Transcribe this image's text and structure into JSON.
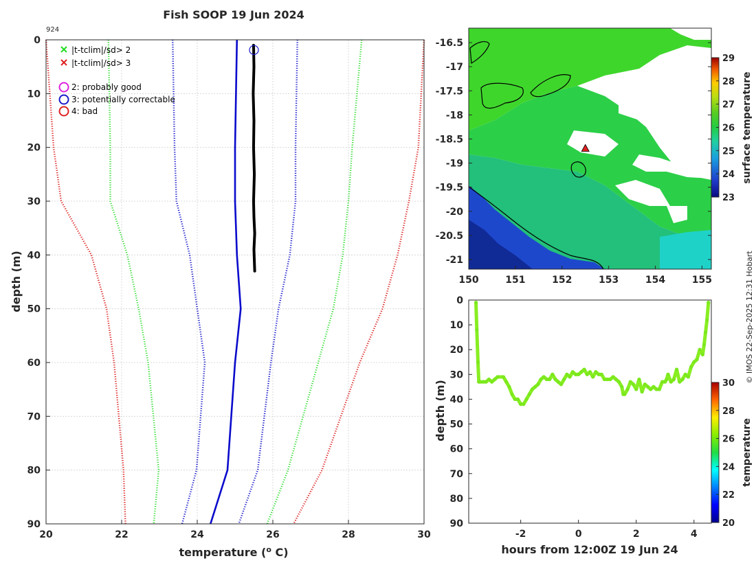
{
  "colors": {
    "limit_sd2": "#33dd33",
    "limit_sd3": "#dd2222",
    "limit_blue": "#1a1acc",
    "clim_mean": "#0a0acc",
    "profile": "#000000",
    "track": "#88ee22",
    "qc_good": "#cc22cc",
    "qc_correctable": "#1a1acc",
    "qc_bad": "#dd2222"
  },
  "chart_data": [
    {
      "id": "profile",
      "type": "line",
      "title": "Fish SOOP 19 Jun 2024",
      "id_label": "924",
      "xlabel": "temperature (",
      "xlabel_sup": "o",
      "xlabel_tail": " C)",
      "ylabel": "depth (m)",
      "xlim": [
        20,
        30
      ],
      "ylim": [
        0,
        90
      ],
      "xticks": [
        20,
        22,
        24,
        26,
        28,
        30
      ],
      "yticks": [
        0,
        10,
        20,
        30,
        40,
        50,
        60,
        70,
        80,
        90
      ],
      "grid": true,
      "legend": {
        "position": "top-left",
        "entries": [
          {
            "marker": "x",
            "color": "#22dd22",
            "label": "|t-tclim|/sd> 2"
          },
          {
            "marker": "x",
            "color": "#dd2222",
            "label": "|t-tclim|/sd> 3"
          },
          {
            "marker": "o",
            "color": "#dd22dd",
            "label": "2: probably good"
          },
          {
            "marker": "o",
            "color": "#1a1acc",
            "label": "3: potentially correctable"
          },
          {
            "marker": "o",
            "color": "#dd2222",
            "label": "4: bad"
          }
        ]
      },
      "series": [
        {
          "name": "clim -3sd",
          "style": "dotted",
          "color": "#dd2222",
          "x": [
            20.0,
            20.2,
            20.4,
            21.2,
            21.6,
            21.8,
            22.05,
            22.1
          ],
          "y": [
            0,
            20,
            30,
            40,
            50,
            60,
            80,
            90
          ]
        },
        {
          "name": "clim -2sd",
          "style": "dotted",
          "color": "#33dd33",
          "x": [
            21.65,
            21.7,
            21.7,
            22.15,
            22.45,
            22.7,
            22.98,
            22.85
          ],
          "y": [
            0,
            20,
            30,
            40,
            50,
            60,
            80,
            90
          ]
        },
        {
          "name": "clim -1sd",
          "style": "dotted",
          "color": "#1a1acc",
          "x": [
            23.35,
            23.4,
            23.45,
            23.8,
            24.0,
            24.2,
            23.98,
            23.6
          ],
          "y": [
            0,
            20,
            30,
            40,
            50,
            60,
            80,
            90
          ]
        },
        {
          "name": "clim mean",
          "style": "solid",
          "color": "#0a0acc",
          "x": [
            25.05,
            25.0,
            25.0,
            25.05,
            25.15,
            25.0,
            24.8,
            24.35
          ],
          "y": [
            0,
            20,
            30,
            40,
            50,
            60,
            80,
            90
          ]
        },
        {
          "name": "clim +1sd",
          "style": "dotted",
          "color": "#1a1acc",
          "x": [
            26.65,
            26.6,
            26.6,
            26.45,
            26.15,
            25.95,
            25.6,
            25.1
          ],
          "y": [
            0,
            20,
            30,
            40,
            50,
            60,
            80,
            90
          ]
        },
        {
          "name": "clim +2sd",
          "style": "dotted",
          "color": "#33dd33",
          "x": [
            28.35,
            28.1,
            28.0,
            27.85,
            27.6,
            27.2,
            26.4,
            25.85
          ],
          "y": [
            0,
            20,
            30,
            40,
            50,
            60,
            80,
            90
          ]
        },
        {
          "name": "clim +3sd",
          "style": "dotted",
          "color": "#dd2222",
          "x": [
            30.0,
            29.85,
            29.6,
            29.3,
            28.9,
            28.3,
            27.3,
            26.55
          ],
          "y": [
            0,
            20,
            30,
            40,
            50,
            60,
            80,
            90
          ]
        },
        {
          "name": "profile",
          "style": "thick",
          "color": "#000000",
          "x": [
            25.49,
            25.5,
            25.48,
            25.5,
            25.49,
            25.51,
            25.49,
            25.5,
            25.52,
            25.5,
            25.51,
            25.52
          ],
          "y": [
            1,
            5,
            10,
            15,
            20,
            25,
            30,
            33,
            36,
            39,
            41,
            43
          ]
        }
      ],
      "markers": [
        {
          "x": 25.5,
          "y": 1,
          "shape": "circle",
          "color": "#1a1acc"
        }
      ]
    },
    {
      "id": "map",
      "type": "heatmap",
      "xlim": [
        150,
        155.2
      ],
      "ylim": [
        -21.2,
        -16.2
      ],
      "xticks": [
        150,
        151,
        152,
        153,
        154,
        155
      ],
      "yticks": [
        -16.5,
        -17,
        -17.5,
        -18,
        -18.5,
        -19,
        -19.5,
        -20,
        -20.5,
        -21
      ],
      "colorbar": {
        "label": "surface temperature",
        "range": [
          23,
          29
        ],
        "ticks": [
          23,
          24,
          25,
          26,
          27,
          28,
          29
        ]
      },
      "position_marker": {
        "lon": 152.5,
        "lat": -18.7,
        "shape": "triangle"
      }
    },
    {
      "id": "track",
      "type": "scatter",
      "xlabel": "hours from 12:00Z 19 Jun 24",
      "ylabel": "depth (m)",
      "xlim": [
        -3.8,
        4.6
      ],
      "ylim": [
        0,
        90
      ],
      "xticks": [
        -2,
        0,
        2,
        4
      ],
      "yticks": [
        0,
        10,
        20,
        30,
        40,
        50,
        60,
        70,
        80,
        90
      ],
      "colorbar": {
        "label": "temperature",
        "range": [
          20,
          30
        ],
        "ticks": [
          20,
          22,
          24,
          26,
          28,
          30
        ]
      },
      "series": [
        {
          "name": "towed depth",
          "x": [
            -3.55,
            -3.52,
            -3.48,
            -3.45,
            -3.4,
            -3.3,
            -3.2,
            -3.1,
            -3.0,
            -2.9,
            -2.8,
            -2.6,
            -2.5,
            -2.4,
            -2.3,
            -2.2,
            -2.1,
            -2.0,
            -1.9,
            -1.8,
            -1.7,
            -1.6,
            -1.5,
            -1.4,
            -1.3,
            -1.2,
            -1.1,
            -1.0,
            -0.9,
            -0.8,
            -0.7,
            -0.6,
            -0.5,
            -0.4,
            -0.3,
            -0.2,
            -0.1,
            0.0,
            0.1,
            0.2,
            0.3,
            0.4,
            0.5,
            0.6,
            0.7,
            0.8,
            0.9,
            1.0,
            1.1,
            1.2,
            1.3,
            1.4,
            1.5,
            1.55,
            1.6,
            1.7,
            1.8,
            1.9,
            2.0,
            2.1,
            2.2,
            2.3,
            2.4,
            2.5,
            2.6,
            2.7,
            2.8,
            2.9,
            3.0,
            3.05,
            3.1,
            3.2,
            3.3,
            3.4,
            3.5,
            3.6,
            3.7,
            3.8,
            3.9,
            4.0,
            4.1,
            4.2,
            4.3,
            4.35,
            4.4,
            4.45,
            4.5
          ],
          "y": [
            1,
            12,
            25,
            33,
            33,
            33,
            33,
            32,
            33,
            32,
            31,
            31,
            33,
            35,
            38,
            40,
            40,
            42,
            42,
            40,
            38,
            36,
            35,
            34,
            32,
            31,
            32,
            32,
            30,
            32,
            33,
            34,
            32,
            30,
            31,
            29,
            30,
            30,
            29,
            28,
            30,
            29,
            31,
            29,
            30,
            30,
            32,
            32,
            32,
            31,
            32,
            33,
            35,
            38,
            38,
            36,
            33,
            34,
            36,
            32,
            37,
            34,
            35,
            36,
            35,
            36,
            36,
            33,
            33,
            32,
            30,
            33,
            32,
            28,
            33,
            32,
            30,
            31,
            27,
            25,
            24,
            20,
            22,
            18,
            13,
            8,
            1
          ]
        }
      ]
    }
  ],
  "watermark": "© IMOS 22-Sep-2025 12:31 Hobart"
}
